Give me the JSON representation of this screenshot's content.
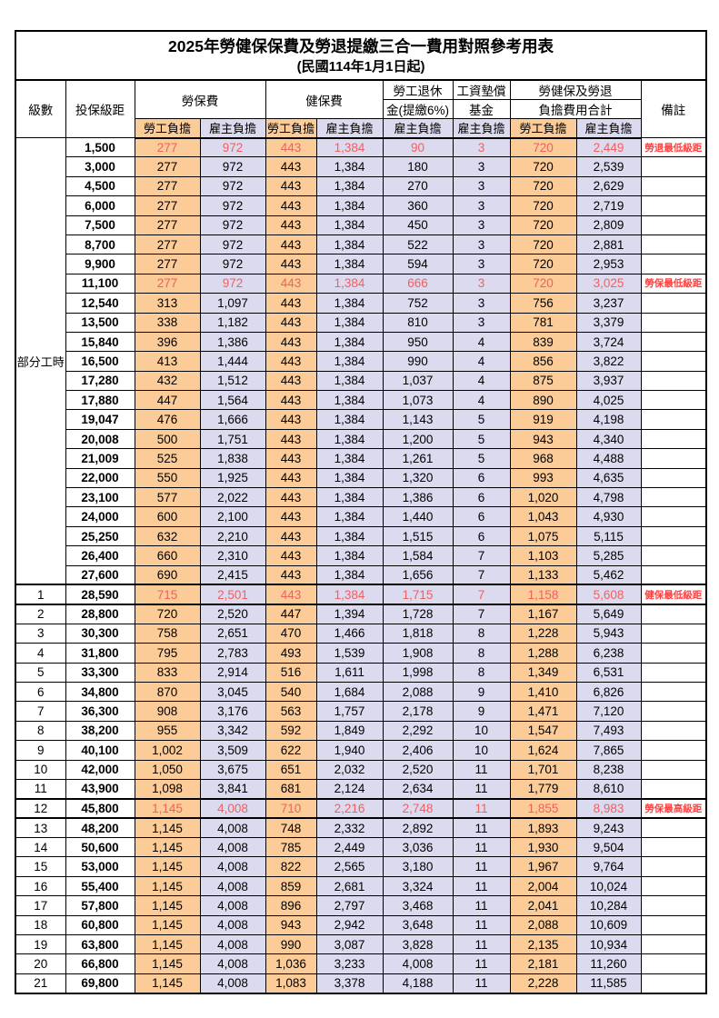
{
  "title": "2025年勞健保保費及勞退提繳三合一費用對照參考用表",
  "subtitle": "(民國114年1月1日起)",
  "colors": {
    "employee_bg": "#fbcb98",
    "employer_bg": "#dcdaee",
    "highlight_number_text": "#f25f5f",
    "remark_text": "#ff4040"
  },
  "header": {
    "level": "級數",
    "bracket": "投保級距",
    "labor_insurance": "勞保費",
    "health_insurance": "健保費",
    "pension_line1": "勞工退休",
    "pension_line2": "金(提繳6%)",
    "wage_fund_line1": "工資墊償",
    "wage_fund_line2": "基金",
    "total_line1": "勞健保及勞退",
    "total_line2": "負擔費用合計",
    "remark": "備註",
    "employee": "勞工負擔",
    "employer": "雇主負擔"
  },
  "part_time_label": "部分工時",
  "rows": [
    {
      "level": "",
      "bracket": "1,500",
      "cells": [
        "277",
        "972",
        "443",
        "1,384",
        "90",
        "3",
        "720",
        "2,449"
      ],
      "remark": "勞退最低級距",
      "red": true
    },
    {
      "level": "",
      "bracket": "3,000",
      "cells": [
        "277",
        "972",
        "443",
        "1,384",
        "180",
        "3",
        "720",
        "2,539"
      ],
      "remark": "",
      "red": false
    },
    {
      "level": "",
      "bracket": "4,500",
      "cells": [
        "277",
        "972",
        "443",
        "1,384",
        "270",
        "3",
        "720",
        "2,629"
      ],
      "remark": "",
      "red": false
    },
    {
      "level": "",
      "bracket": "6,000",
      "cells": [
        "277",
        "972",
        "443",
        "1,384",
        "360",
        "3",
        "720",
        "2,719"
      ],
      "remark": "",
      "red": false
    },
    {
      "level": "",
      "bracket": "7,500",
      "cells": [
        "277",
        "972",
        "443",
        "1,384",
        "450",
        "3",
        "720",
        "2,809"
      ],
      "remark": "",
      "red": false
    },
    {
      "level": "",
      "bracket": "8,700",
      "cells": [
        "277",
        "972",
        "443",
        "1,384",
        "522",
        "3",
        "720",
        "2,881"
      ],
      "remark": "",
      "red": false
    },
    {
      "level": "",
      "bracket": "9,900",
      "cells": [
        "277",
        "972",
        "443",
        "1,384",
        "594",
        "3",
        "720",
        "2,953"
      ],
      "remark": "",
      "red": false
    },
    {
      "level": "",
      "bracket": "11,100",
      "cells": [
        "277",
        "972",
        "443",
        "1,384",
        "666",
        "3",
        "720",
        "3,025"
      ],
      "remark": "勞保最低級距",
      "red": true
    },
    {
      "level": "",
      "bracket": "12,540",
      "cells": [
        "313",
        "1,097",
        "443",
        "1,384",
        "752",
        "3",
        "756",
        "3,237"
      ],
      "remark": "",
      "red": false
    },
    {
      "level": "",
      "bracket": "13,500",
      "cells": [
        "338",
        "1,182",
        "443",
        "1,384",
        "810",
        "3",
        "781",
        "3,379"
      ],
      "remark": "",
      "red": false
    },
    {
      "level": "",
      "bracket": "15,840",
      "cells": [
        "396",
        "1,386",
        "443",
        "1,384",
        "950",
        "4",
        "839",
        "3,724"
      ],
      "remark": "",
      "red": false
    },
    {
      "level": "",
      "bracket": "16,500",
      "cells": [
        "413",
        "1,444",
        "443",
        "1,384",
        "990",
        "4",
        "856",
        "3,822"
      ],
      "remark": "",
      "red": false
    },
    {
      "level": "",
      "bracket": "17,280",
      "cells": [
        "432",
        "1,512",
        "443",
        "1,384",
        "1,037",
        "4",
        "875",
        "3,937"
      ],
      "remark": "",
      "red": false
    },
    {
      "level": "",
      "bracket": "17,880",
      "cells": [
        "447",
        "1,564",
        "443",
        "1,384",
        "1,073",
        "4",
        "890",
        "4,025"
      ],
      "remark": "",
      "red": false
    },
    {
      "level": "",
      "bracket": "19,047",
      "cells": [
        "476",
        "1,666",
        "443",
        "1,384",
        "1,143",
        "5",
        "919",
        "4,198"
      ],
      "remark": "",
      "red": false
    },
    {
      "level": "",
      "bracket": "20,008",
      "cells": [
        "500",
        "1,751",
        "443",
        "1,384",
        "1,200",
        "5",
        "943",
        "4,340"
      ],
      "remark": "",
      "red": false
    },
    {
      "level": "",
      "bracket": "21,009",
      "cells": [
        "525",
        "1,838",
        "443",
        "1,384",
        "1,261",
        "5",
        "968",
        "4,488"
      ],
      "remark": "",
      "red": false
    },
    {
      "level": "",
      "bracket": "22,000",
      "cells": [
        "550",
        "1,925",
        "443",
        "1,384",
        "1,320",
        "6",
        "993",
        "4,635"
      ],
      "remark": "",
      "red": false
    },
    {
      "level": "",
      "bracket": "23,100",
      "cells": [
        "577",
        "2,022",
        "443",
        "1,384",
        "1,386",
        "6",
        "1,020",
        "4,798"
      ],
      "remark": "",
      "red": false
    },
    {
      "level": "",
      "bracket": "24,000",
      "cells": [
        "600",
        "2,100",
        "443",
        "1,384",
        "1,440",
        "6",
        "1,043",
        "4,930"
      ],
      "remark": "",
      "red": false
    },
    {
      "level": "",
      "bracket": "25,250",
      "cells": [
        "632",
        "2,210",
        "443",
        "1,384",
        "1,515",
        "6",
        "1,075",
        "5,115"
      ],
      "remark": "",
      "red": false
    },
    {
      "level": "",
      "bracket": "26,400",
      "cells": [
        "660",
        "2,310",
        "443",
        "1,384",
        "1,584",
        "7",
        "1,103",
        "5,285"
      ],
      "remark": "",
      "red": false
    },
    {
      "level": "",
      "bracket": "27,600",
      "cells": [
        "690",
        "2,415",
        "443",
        "1,384",
        "1,656",
        "7",
        "1,133",
        "5,462"
      ],
      "remark": "",
      "red": false
    },
    {
      "level": "1",
      "bracket": "28,590",
      "cells": [
        "715",
        "2,501",
        "443",
        "1,384",
        "1,715",
        "7",
        "1,158",
        "5,608"
      ],
      "remark": "健保最低級距",
      "red": true
    },
    {
      "level": "2",
      "bracket": "28,800",
      "cells": [
        "720",
        "2,520",
        "447",
        "1,394",
        "1,728",
        "7",
        "1,167",
        "5,649"
      ],
      "remark": "",
      "red": false
    },
    {
      "level": "3",
      "bracket": "30,300",
      "cells": [
        "758",
        "2,651",
        "470",
        "1,466",
        "1,818",
        "8",
        "1,228",
        "5,943"
      ],
      "remark": "",
      "red": false
    },
    {
      "level": "4",
      "bracket": "31,800",
      "cells": [
        "795",
        "2,783",
        "493",
        "1,539",
        "1,908",
        "8",
        "1,288",
        "6,238"
      ],
      "remark": "",
      "red": false
    },
    {
      "level": "5",
      "bracket": "33,300",
      "cells": [
        "833",
        "2,914",
        "516",
        "1,611",
        "1,998",
        "8",
        "1,349",
        "6,531"
      ],
      "remark": "",
      "red": false
    },
    {
      "level": "6",
      "bracket": "34,800",
      "cells": [
        "870",
        "3,045",
        "540",
        "1,684",
        "2,088",
        "9",
        "1,410",
        "6,826"
      ],
      "remark": "",
      "red": false
    },
    {
      "level": "7",
      "bracket": "36,300",
      "cells": [
        "908",
        "3,176",
        "563",
        "1,757",
        "2,178",
        "9",
        "1,471",
        "7,120"
      ],
      "remark": "",
      "red": false
    },
    {
      "level": "8",
      "bracket": "38,200",
      "cells": [
        "955",
        "3,342",
        "592",
        "1,849",
        "2,292",
        "10",
        "1,547",
        "7,493"
      ],
      "remark": "",
      "red": false
    },
    {
      "level": "9",
      "bracket": "40,100",
      "cells": [
        "1,002",
        "3,509",
        "622",
        "1,940",
        "2,406",
        "10",
        "1,624",
        "7,865"
      ],
      "remark": "",
      "red": false
    },
    {
      "level": "10",
      "bracket": "42,000",
      "cells": [
        "1,050",
        "3,675",
        "651",
        "2,032",
        "2,520",
        "11",
        "1,701",
        "8,238"
      ],
      "remark": "",
      "red": false
    },
    {
      "level": "11",
      "bracket": "43,900",
      "cells": [
        "1,098",
        "3,841",
        "681",
        "2,124",
        "2,634",
        "11",
        "1,779",
        "8,610"
      ],
      "remark": "",
      "red": false
    },
    {
      "level": "12",
      "bracket": "45,800",
      "cells": [
        "1,145",
        "4,008",
        "710",
        "2,216",
        "2,748",
        "11",
        "1,855",
        "8,983"
      ],
      "remark": "勞保最高級距",
      "red": true
    },
    {
      "level": "13",
      "bracket": "48,200",
      "cells": [
        "1,145",
        "4,008",
        "748",
        "2,332",
        "2,892",
        "11",
        "1,893",
        "9,243"
      ],
      "remark": "",
      "red": false
    },
    {
      "level": "14",
      "bracket": "50,600",
      "cells": [
        "1,145",
        "4,008",
        "785",
        "2,449",
        "3,036",
        "11",
        "1,930",
        "9,504"
      ],
      "remark": "",
      "red": false
    },
    {
      "level": "15",
      "bracket": "53,000",
      "cells": [
        "1,145",
        "4,008",
        "822",
        "2,565",
        "3,180",
        "11",
        "1,967",
        "9,764"
      ],
      "remark": "",
      "red": false
    },
    {
      "level": "16",
      "bracket": "55,400",
      "cells": [
        "1,145",
        "4,008",
        "859",
        "2,681",
        "3,324",
        "11",
        "2,004",
        "10,024"
      ],
      "remark": "",
      "red": false
    },
    {
      "level": "17",
      "bracket": "57,800",
      "cells": [
        "1,145",
        "4,008",
        "896",
        "2,797",
        "3,468",
        "11",
        "2,041",
        "10,284"
      ],
      "remark": "",
      "red": false
    },
    {
      "level": "18",
      "bracket": "60,800",
      "cells": [
        "1,145",
        "4,008",
        "943",
        "2,942",
        "3,648",
        "11",
        "2,088",
        "10,609"
      ],
      "remark": "",
      "red": false
    },
    {
      "level": "19",
      "bracket": "63,800",
      "cells": [
        "1,145",
        "4,008",
        "990",
        "3,087",
        "3,828",
        "11",
        "2,135",
        "10,934"
      ],
      "remark": "",
      "red": false
    },
    {
      "level": "20",
      "bracket": "66,800",
      "cells": [
        "1,145",
        "4,008",
        "1,036",
        "3,233",
        "4,008",
        "11",
        "2,181",
        "11,260"
      ],
      "remark": "",
      "red": false
    },
    {
      "level": "21",
      "bracket": "69,800",
      "cells": [
        "1,145",
        "4,008",
        "1,083",
        "3,378",
        "4,188",
        "11",
        "2,228",
        "11,585"
      ],
      "remark": "",
      "red": false
    }
  ]
}
